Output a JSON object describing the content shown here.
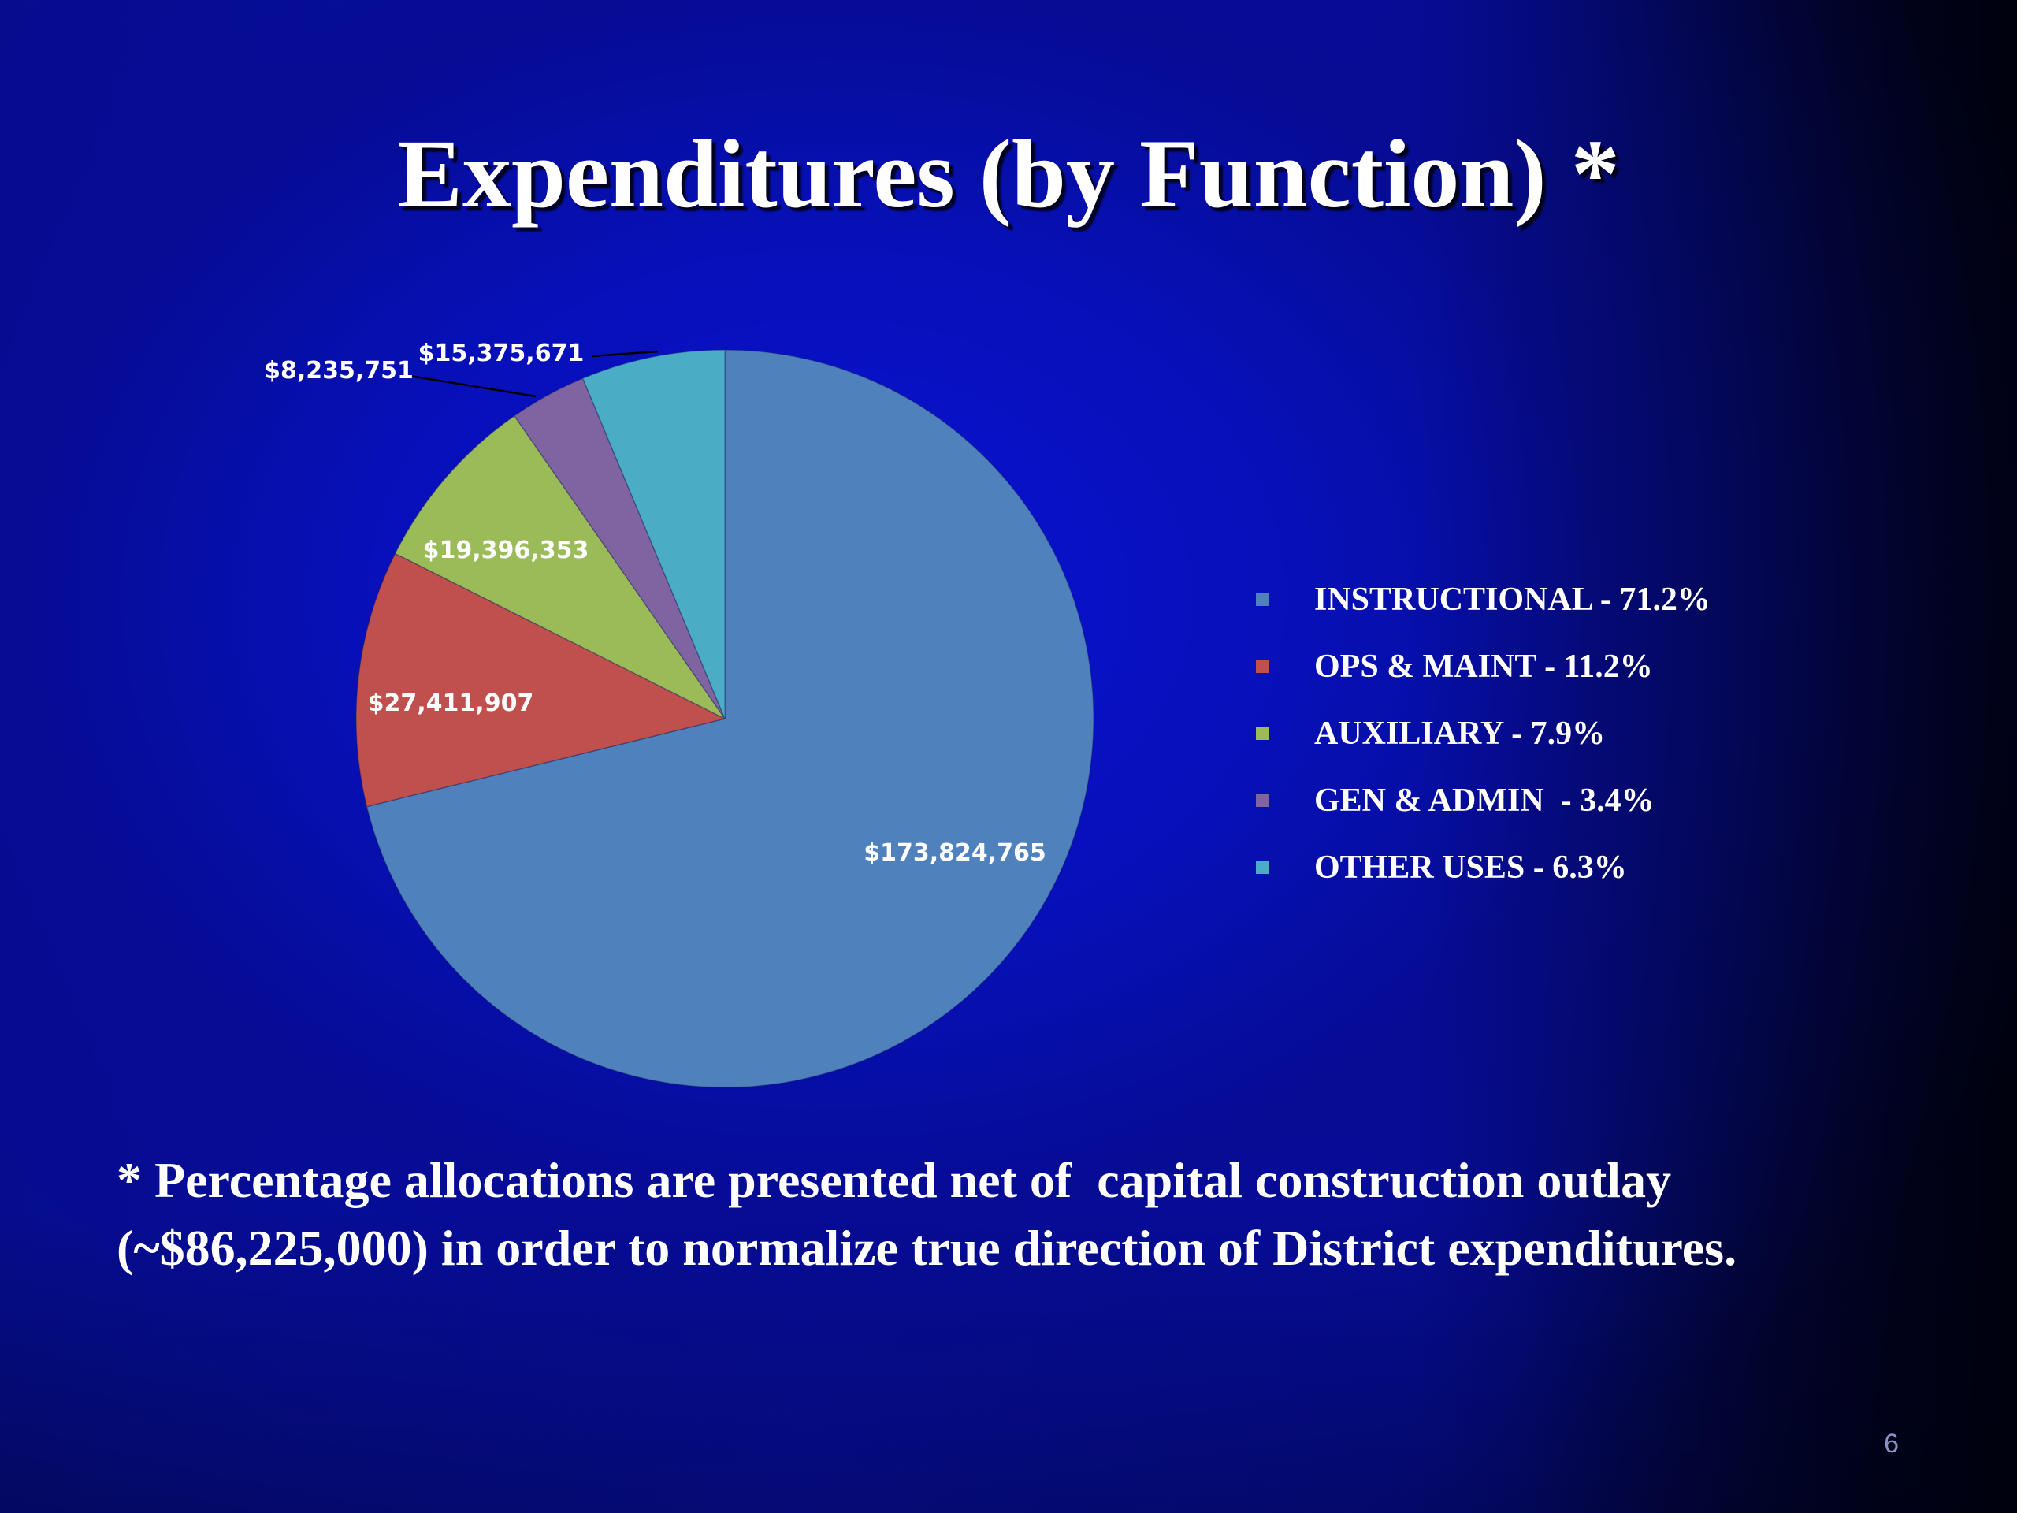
{
  "slide": {
    "title": "Expenditures (by Function) *",
    "footnote": "* Percentage allocations are presented net of  capital construction outlay (~$86,225,000) in order to normalize true direction of District expenditures.",
    "page_number": "6"
  },
  "chart_data": {
    "type": "pie",
    "title": "",
    "categories": [
      "INSTRUCTIONAL",
      "OPS & MAINT",
      "AUXILIARY",
      "GEN & ADMIN",
      "OTHER USES"
    ],
    "values": [
      173824765,
      27411907,
      19396353,
      8235751,
      15375671
    ],
    "value_labels": [
      "$173,824,765",
      "$27,411,907",
      "$19,396,353",
      "$8,235,751",
      "$15,375,671"
    ],
    "colors": [
      "#4f81bd",
      "#c0504d",
      "#9bbb59",
      "#8064a2",
      "#4bacc6"
    ],
    "start_angle_deg": 0,
    "direction": "clockwise",
    "legend": {
      "position": "right",
      "entries": [
        "INSTRUCTIONAL - 71.2%",
        "OPS & MAINT - 11.2%",
        "AUXILIARY - 7.9%",
        "GEN & ADMIN  - 3.4%",
        "OTHER USES - 6.3%"
      ]
    }
  }
}
